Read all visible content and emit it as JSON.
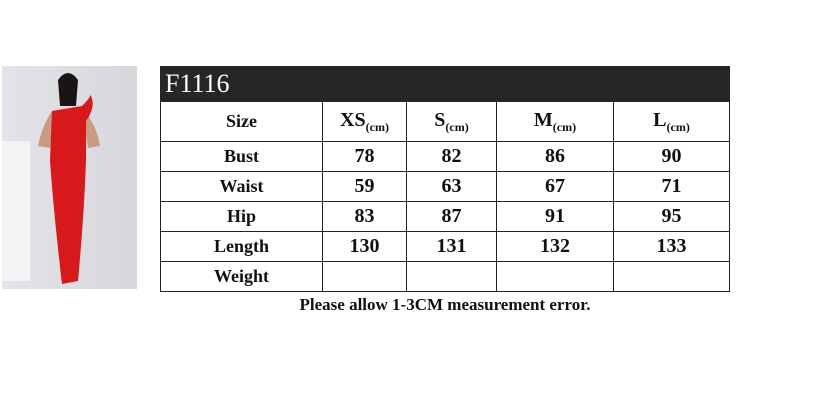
{
  "code": "F1116",
  "columns": [
    {
      "size": "XS",
      "unit": "(cm)"
    },
    {
      "size": "S",
      "unit": "(cm)"
    },
    {
      "size": "M",
      "unit": "(cm)"
    },
    {
      "size": "L",
      "unit": "(cm)"
    }
  ],
  "size_label": "Size",
  "rows": [
    {
      "label": "Bust",
      "values": [
        "78",
        "82",
        "86",
        "90"
      ]
    },
    {
      "label": "Waist",
      "values": [
        "59",
        "63",
        "67",
        "71"
      ]
    },
    {
      "label": "Hip",
      "values": [
        "83",
        "87",
        "91",
        "95"
      ]
    },
    {
      "label": "Length",
      "values": [
        "130",
        "131",
        "132",
        "133"
      ]
    },
    {
      "label": "Weight",
      "values": [
        "",
        "",
        "",
        ""
      ]
    }
  ],
  "note": "Please allow 1-3CM measurement error.",
  "colors": {
    "header": "#262626",
    "dress": "#d7191c"
  }
}
